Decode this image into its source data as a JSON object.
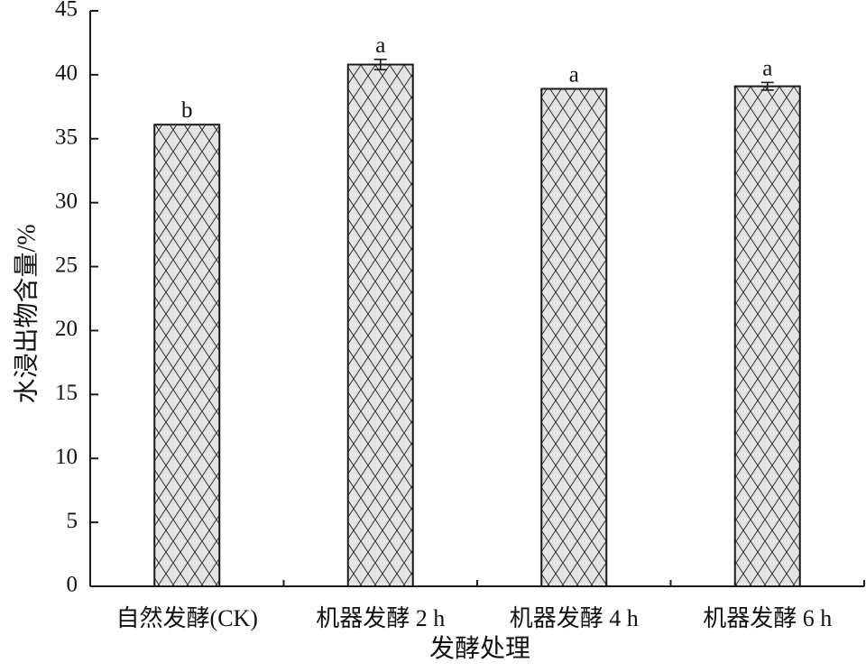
{
  "chart_data": {
    "type": "bar",
    "title": "",
    "xlabel": "发酵处理",
    "ylabel": "水浸出物含量/%",
    "categories": [
      "自然发酵(CK)",
      "机器发酵 2 h",
      "机器发酵 4 h",
      "机器发酵 6 h"
    ],
    "values": [
      36.1,
      40.8,
      38.9,
      39.1
    ],
    "error": [
      0.0,
      0.4,
      0.0,
      0.3
    ],
    "significance": [
      "b",
      "a",
      "a",
      "a"
    ],
    "ylim": [
      0,
      45
    ],
    "yticks": [
      0,
      5,
      10,
      15,
      20,
      25,
      30,
      35,
      40,
      45
    ],
    "grid": false,
    "legend": "none",
    "colors": {
      "bar_fill": "#e4e4e4",
      "hatch": "#2a2a2a",
      "axis": "#1a1a1a"
    }
  }
}
